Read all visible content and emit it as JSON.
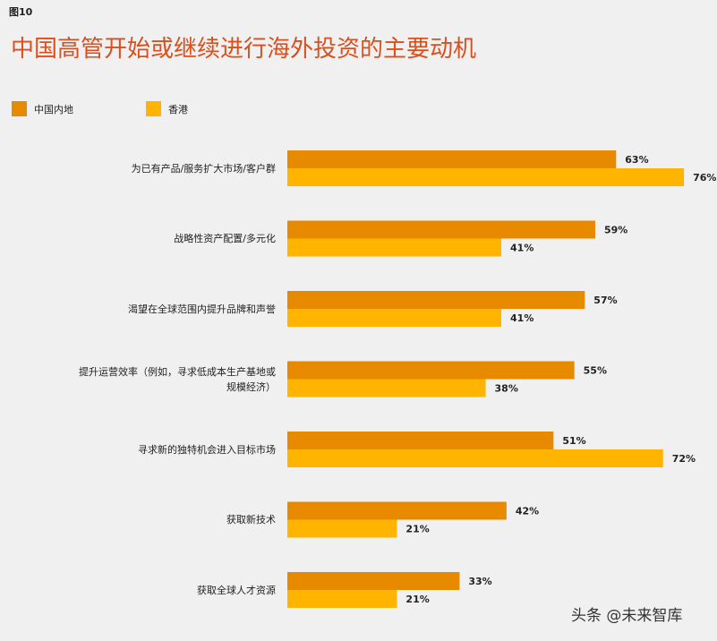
{
  "chart_data": {
    "type": "hbar",
    "figure_label": "图10",
    "title": "中国高管开始或继续进行海外投资的主要动机",
    "watermark": "头条 @未来智库",
    "categories": [
      "为已有产品/服务扩大市场/客户群",
      "战略性资产配置/多元化",
      "渴望在全球范围内提升品牌和声誉",
      "提升运营效率（例如，寻求低成本生产基地或规模经济）",
      "寻求新的独特机会进入目标市场",
      "获取新技术",
      "获取全球人才资源"
    ],
    "series": [
      {
        "name": "中国内地",
        "color": "#e88a00",
        "values": [
          63,
          59,
          57,
          55,
          51,
          42,
          33
        ],
        "value_labels": [
          "63%",
          "59%",
          "57%",
          "55%",
          "51%",
          "42%",
          "33%"
        ]
      },
      {
        "name": "香港",
        "color": "#ffb400",
        "values": [
          76,
          41,
          41,
          38,
          72,
          21,
          21
        ],
        "value_labels": [
          "76%",
          "41%",
          "41%",
          "38%",
          "72%",
          "21%",
          "21%"
        ]
      }
    ]
  }
}
